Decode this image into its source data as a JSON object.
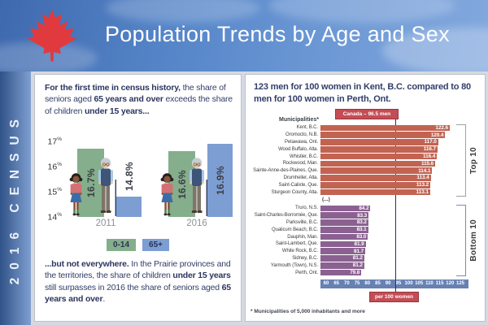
{
  "header": {
    "title": "Population Trends by Age and Sex"
  },
  "sidebar": {
    "label": "2016 CENSUS"
  },
  "left_panel": {
    "intro": {
      "b1": "For the first time in census history,",
      "r1": " the share of seniors aged ",
      "b2": "65 years and over",
      "r2": " exceeds the share of children ",
      "b3": "under 15 years..."
    },
    "outro": {
      "b1": "...but not everywhere.",
      "r1": " In the Prairie provinces and the territories, the share of children ",
      "b2": "under 15 years",
      "r2": " still surpasses in 2016 the share of seniors aged ",
      "b3": "65 years and over",
      "r3": "."
    }
  },
  "right_panel": {
    "title": "123 men for 100 women in Kent, B.C. compared to 80 men for 100 women in Perth, Ont.",
    "column_header": "Municipalities*",
    "canada_badge": "Canada – 96.5 men",
    "axis_unit_badge": "per 100 women",
    "separator": "(...)",
    "footnote": "* Municipalities of 5,000 inhabitants and more",
    "group_labels": {
      "top": "Top 10",
      "bottom": "Bottom 10"
    }
  },
  "colors": {
    "maple_red": "#e03a3f",
    "navy_text": "#333e68",
    "child_green": "#85ae8c",
    "senior_blue": "#7d9ed3",
    "top10_bar": "#c26352",
    "bottom10_bar": "#8b6191",
    "axis_band": "#6781b3",
    "badge_red": "#c44d55"
  },
  "icons": {
    "header_logo": "maple-leaf",
    "age_chart_figures": [
      "child-girl",
      "senior-man"
    ]
  },
  "chart_data": [
    {
      "type": "bar",
      "categories": [
        "2011",
        "2016"
      ],
      "series": [
        {
          "name": "0-14",
          "color": "#85ae8c",
          "values": [
            16.7,
            16.6
          ]
        },
        {
          "name": "65+",
          "color": "#7d9ed3",
          "values": [
            14.8,
            16.9
          ]
        }
      ],
      "unit": "%",
      "ylim": [
        14,
        17
      ],
      "yticks": [
        14,
        15,
        16,
        17
      ],
      "legend_position": "bottom"
    },
    {
      "type": "bar",
      "orientation": "horizontal",
      "xlabel": "per 100 women",
      "xlim": [
        60,
        125
      ],
      "xticks": [
        60,
        65,
        70,
        75,
        80,
        85,
        90,
        95,
        100,
        105,
        110,
        115,
        120,
        125
      ],
      "reference_line": {
        "label": "Canada – 96.5 men",
        "value": 96.5
      },
      "groups": [
        {
          "name": "Top 10",
          "color": "#c26352",
          "items": [
            {
              "label": "Kent, B.C.",
              "value": 122.6
            },
            {
              "label": "Oromocto, N.B.",
              "value": 120.4
            },
            {
              "label": "Petawawa, Ont.",
              "value": 117.0
            },
            {
              "label": "Wood Buffalo, Alta.",
              "value": 116.7
            },
            {
              "label": "Whistler, B.C.",
              "value": 116.4
            },
            {
              "label": "Rockwood, Man.",
              "value": 115.6
            },
            {
              "label": "Sainte-Anne-des-Plaines, Que.",
              "value": 114.1
            },
            {
              "label": "Drumheller, Alta.",
              "value": 113.4
            },
            {
              "label": "Saint-Calixte, Que.",
              "value": 113.2
            },
            {
              "label": "Sturgeon County, Alta.",
              "value": 113.1
            }
          ]
        },
        {
          "name": "Bottom 10",
          "color": "#8b6191",
          "items": [
            {
              "label": "Truro, N.S.",
              "value": 84.2
            },
            {
              "label": "Saint-Charles-Borromée, Que.",
              "value": 83.3
            },
            {
              "label": "Parksville, B.C.",
              "value": 83.2
            },
            {
              "label": "Qualicum Beach, B.C.",
              "value": 83.1
            },
            {
              "label": "Dauphin, Man.",
              "value": 83.0
            },
            {
              "label": "Saint-Lambert, Que.",
              "value": 81.9
            },
            {
              "label": "White Rock, B.C.",
              "value": 81.7
            },
            {
              "label": "Sidney, B.C.",
              "value": 81.2
            },
            {
              "label": "Yarmouth (Town), N.S.",
              "value": 81.2
            },
            {
              "label": "Perth, Ont.",
              "value": 79.8
            }
          ]
        }
      ]
    }
  ]
}
